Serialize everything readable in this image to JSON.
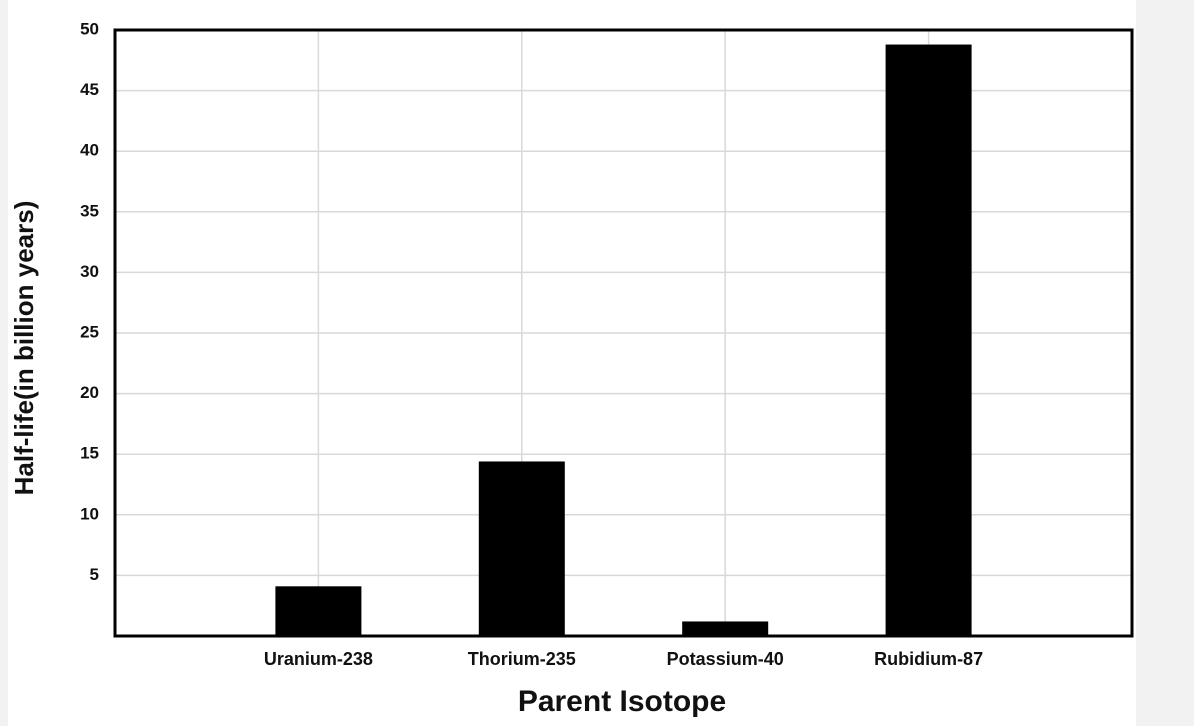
{
  "chart_data": {
    "type": "bar",
    "x_label": "Parent Isotope",
    "y_label": "Half-life(in billion years)",
    "categories": [
      "Uranium-238",
      "Thorium-235",
      "Potassium-40",
      "Rubidium-87"
    ],
    "values": [
      4.1,
      14.4,
      1.2,
      48.8
    ],
    "color": "#000000",
    "ylim": [
      0,
      50
    ],
    "yticks": [
      5,
      10,
      15,
      20,
      25,
      30,
      35,
      40,
      45,
      50
    ],
    "grid": true
  }
}
